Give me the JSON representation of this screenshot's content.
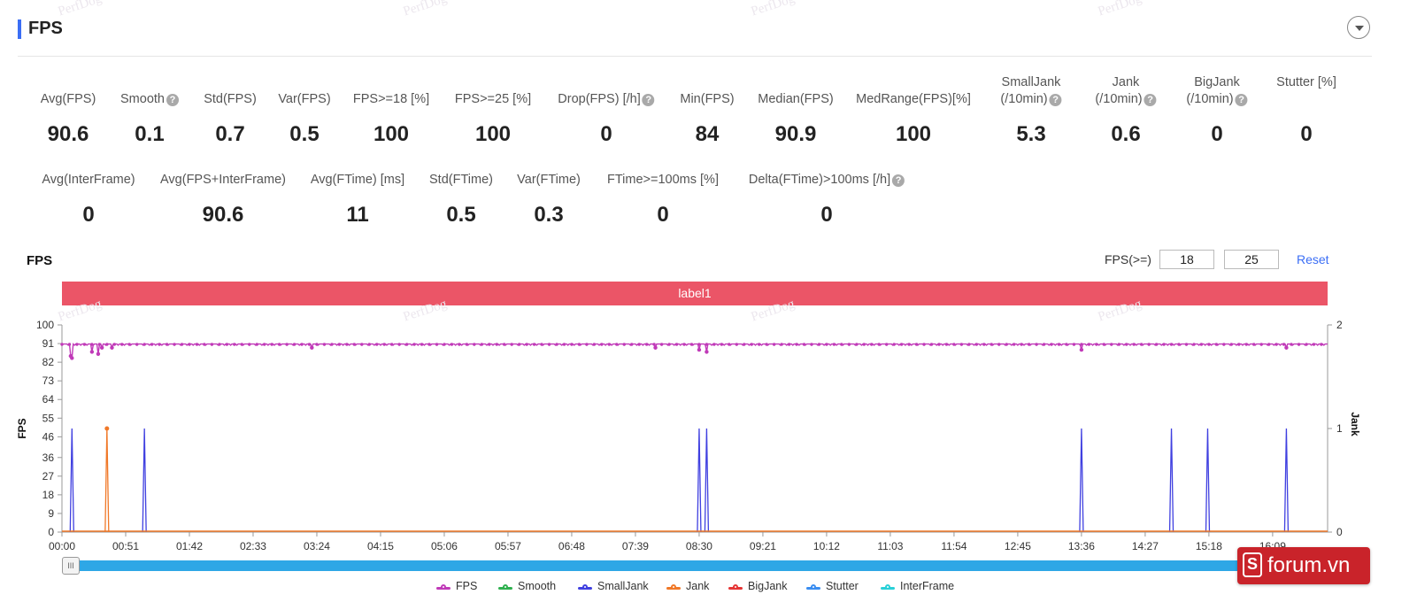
{
  "header": {
    "title": "FPS"
  },
  "metrics_row1": [
    {
      "label": "Avg(FPS)",
      "value": "90.6",
      "help": false,
      "x": 57
    },
    {
      "label": "Smooth",
      "value": "0.1",
      "help": true,
      "x": 149
    },
    {
      "label": "Std(FPS)",
      "value": "0.7",
      "help": false,
      "x": 240
    },
    {
      "label": "Var(FPS)",
      "value": "0.5",
      "help": false,
      "x": 324
    },
    {
      "label": "FPS>=18 [%]",
      "value": "100",
      "help": false,
      "x": 422
    },
    {
      "label": "FPS>=25 [%]",
      "value": "100",
      "help": false,
      "x": 537
    },
    {
      "label": "Drop(FPS) [/h]",
      "value": "0",
      "help": true,
      "x": 665
    },
    {
      "label": "Min(FPS)",
      "value": "84",
      "help": false,
      "x": 779
    },
    {
      "label": "Median(FPS)",
      "value": "90.9",
      "help": false,
      "x": 879
    },
    {
      "label": "MedRange(FPS)[%]",
      "value": "100",
      "help": false,
      "x": 1012
    }
  ],
  "metrics_row1_jank": [
    {
      "label1": "SmallJank",
      "label2": "(/10min)",
      "value": "5.3",
      "help": true,
      "x": 1145
    },
    {
      "label1": "Jank",
      "label2": "(/10min)",
      "value": "0.6",
      "help": true,
      "x": 1252
    },
    {
      "label1": "BigJank",
      "label2": "(/10min)",
      "value": "0",
      "help": true,
      "x": 1355
    },
    {
      "label1": "",
      "label2": "Stutter [%]",
      "value": "0",
      "help": false,
      "x": 1456
    }
  ],
  "metrics_row2": [
    {
      "label": "Avg(InterFrame)",
      "value": "0",
      "help": false,
      "x": 80
    },
    {
      "label": "Avg(FPS+InterFrame)",
      "value": "90.6",
      "help": false,
      "x": 232
    },
    {
      "label": "Avg(FTime) [ms]",
      "value": "11",
      "help": false,
      "x": 384
    },
    {
      "label": "Std(FTime)",
      "value": "0.5",
      "help": false,
      "x": 501
    },
    {
      "label": "Var(FTime)",
      "value": "0.3",
      "help": false,
      "x": 600
    },
    {
      "label": "FTime>=100ms [%]",
      "value": "0",
      "help": false,
      "x": 729
    },
    {
      "label": "Delta(FTime)>100ms [/h]",
      "value": "0",
      "help": true,
      "x": 914
    }
  ],
  "chart_controls": {
    "title": "FPS",
    "threshold_label": "FPS(>=)",
    "threshold_low": "18",
    "threshold_high": "25",
    "reset_label": "Reset"
  },
  "label_band": "label1",
  "watermark": "PerfDog",
  "chart_data": {
    "type": "line",
    "ylabel": "FPS",
    "y2label": "Jank",
    "ylim": [
      0,
      100
    ],
    "yticks": [
      0,
      9,
      18,
      27,
      36,
      46,
      55,
      64,
      73,
      82,
      91,
      100
    ],
    "y2lim": [
      0,
      2
    ],
    "y2ticks": [
      0,
      1,
      2
    ],
    "xlim": [
      0,
      1013
    ],
    "xticks": [
      "00:00",
      "00:51",
      "01:42",
      "02:33",
      "03:24",
      "04:15",
      "05:06",
      "05:57",
      "06:48",
      "07:39",
      "08:30",
      "09:21",
      "10:12",
      "11:03",
      "11:54",
      "12:45",
      "13:36",
      "14:27",
      "15:18",
      "16:09"
    ],
    "xtick_seconds": [
      0,
      51,
      102,
      153,
      204,
      255,
      306,
      357,
      408,
      459,
      510,
      561,
      612,
      663,
      714,
      765,
      816,
      867,
      918,
      969
    ],
    "fps_baseline": 90.6,
    "fps_dips": [
      [
        7,
        85
      ],
      [
        8,
        84
      ],
      [
        24,
        87
      ],
      [
        29,
        86
      ],
      [
        32,
        89
      ],
      [
        40,
        89
      ],
      [
        200,
        89
      ],
      [
        475,
        89
      ],
      [
        510,
        88
      ],
      [
        516,
        87
      ],
      [
        816,
        88
      ],
      [
        980,
        89
      ]
    ],
    "series": [
      {
        "name": "FPS",
        "color": "#c03ab8"
      },
      {
        "name": "Smooth",
        "color": "#2fb04f"
      },
      {
        "name": "SmallJank",
        "color": "#4040e0",
        "spikes_seconds": [
          8,
          66,
          510,
          516,
          816,
          888,
          917,
          980
        ],
        "spike_value": 1
      },
      {
        "name": "Jank",
        "color": "#f07828",
        "spikes_seconds": [
          36
        ],
        "spike_value": 1
      },
      {
        "name": "BigJank",
        "color": "#e53535"
      },
      {
        "name": "Stutter",
        "color": "#3a8df0"
      },
      {
        "name": "InterFrame",
        "color": "#2ad0d8"
      }
    ]
  },
  "badge": {
    "text": "forum.vn",
    "icon_letter": "S"
  }
}
